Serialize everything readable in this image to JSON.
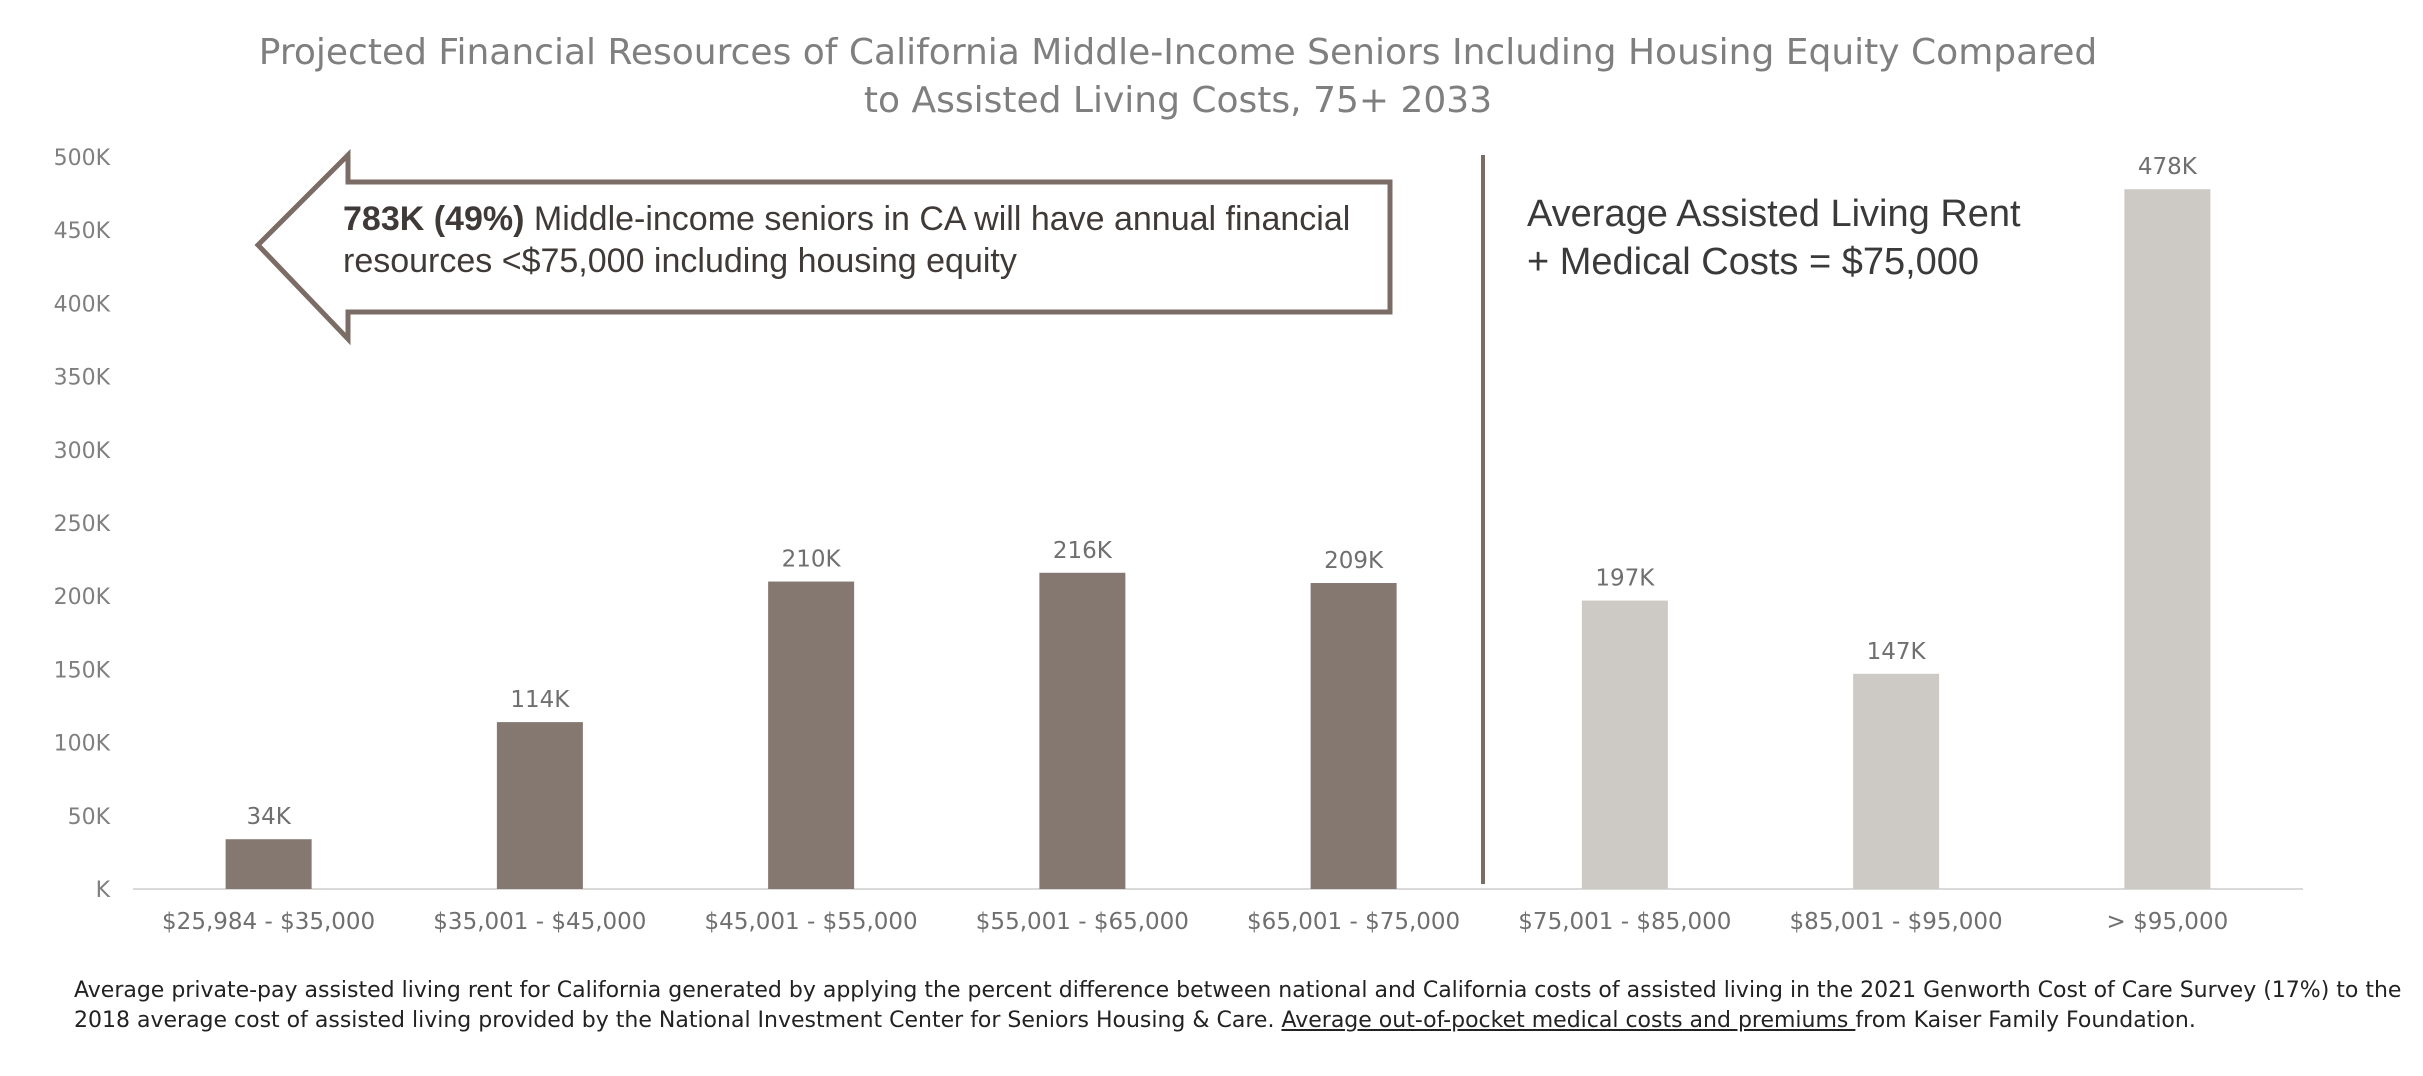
{
  "chart_data": {
    "type": "bar",
    "title": "Projected Financial Resources of California Middle-Income Seniors Including Housing Equity Compared to Assisted Living Costs, 75+ 2033",
    "title_lines": [
      "Projected Financial Resources of California Middle-Income Seniors Including Housing Equity Compared",
      "to Assisted Living Costs, 75+ 2033"
    ],
    "categories": [
      "$25,984 - $35,000",
      "$35,001 - $45,000",
      "$45,001 - $55,000",
      "$55,001 - $65,000",
      "$65,001 - $75,000",
      "$75,001 - $85,000",
      "$85,001 - $95,000",
      "> $95,000"
    ],
    "values": [
      34,
      114,
      210,
      216,
      209,
      197,
      147,
      478
    ],
    "value_unit": "K",
    "data_labels": [
      "34K",
      "114K",
      "210K",
      "216K",
      "209K",
      "197K",
      "147K",
      "478K"
    ],
    "ylim": [
      0,
      500
    ],
    "y_ticks": [
      0,
      50,
      100,
      150,
      200,
      250,
      300,
      350,
      400,
      450,
      500
    ],
    "y_tick_labels": [
      "K",
      "50K",
      "100K",
      "150K",
      "200K",
      "250K",
      "300K",
      "350K",
      "400K",
      "450K",
      "500K"
    ],
    "xlabel": "",
    "ylabel": "",
    "grid": false,
    "bar_colors": {
      "below_threshold": "#857870",
      "above_threshold": "#cdc9c5"
    },
    "threshold_after_category_index": 4,
    "annotations": {
      "arrow_bold": "783K (49%)",
      "arrow_line1": " Middle-income seniors in CA will have annual financial",
      "arrow_line2": "resources <$75,000 including housing equity",
      "rent_line1": "Average Assisted Living Rent",
      "rent_line2": "+ Medical Costs = $75,000"
    }
  },
  "footnote": {
    "line1": "Average private-pay assisted living rent for California generated by applying the percent difference between national and California costs of assisted living in the 2021 Genworth Cost of Care Survey (17%) to the",
    "line2_start": "2018 average cost of assisted living provided by the National Investment Center for Seniors Housing & Care. ",
    "link_text": "Average out-of-pocket medical costs and premiums ",
    "line2_end": "from Kaiser Family Foundation."
  },
  "colors": {
    "arrow_stroke": "#7b6d66",
    "divider": "#7b6d66",
    "axis": "#d9d9d9"
  }
}
